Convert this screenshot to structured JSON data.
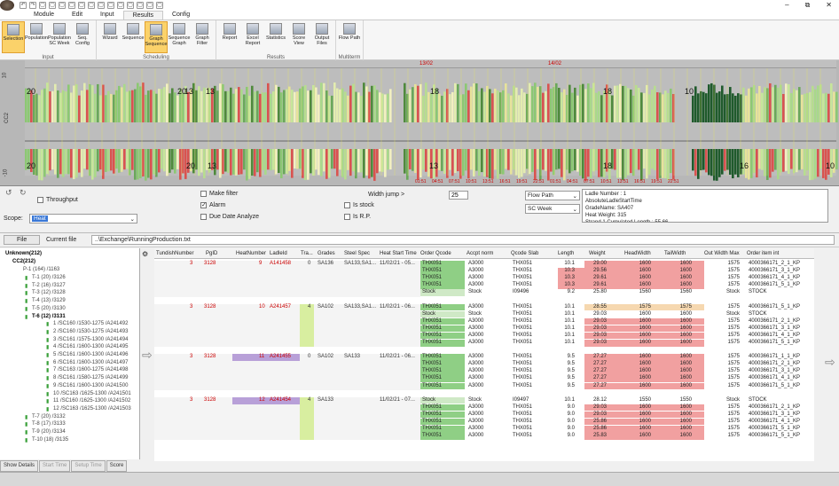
{
  "window": {
    "quick_access": [
      "↶",
      "↷",
      "▢",
      "▢",
      "▢",
      "▢",
      "▢",
      "▢",
      "▢",
      "▢",
      "▢",
      "▢",
      "▢",
      "▢",
      "▢"
    ],
    "controls": [
      "–",
      "⧉",
      "✕"
    ]
  },
  "menu_tabs": [
    "Module",
    "Edit",
    "Input",
    "Results",
    "Config"
  ],
  "ribbon": {
    "groups": [
      {
        "name": "Input",
        "buttons": [
          "Selection",
          "Population",
          "Population SC Week",
          "Seq. Config"
        ]
      },
      {
        "name": "Scheduling",
        "buttons": [
          "Wizard",
          "Sequence",
          "Graph Sequence",
          "Sequence Graph",
          "Graph Filter"
        ]
      },
      {
        "name": "Results",
        "buttons": [
          "Report",
          "Excel Report",
          "Statistics",
          "Score View",
          "Output Files"
        ]
      },
      {
        "name": "Multiterm",
        "buttons": [
          "Flow Path"
        ]
      }
    ],
    "selected": [
      "Selection",
      "Graph Sequence"
    ]
  },
  "chart": {
    "y_labels": [
      "10",
      "CC2",
      "-10"
    ],
    "date_labels": [
      "13/02",
      "14/02"
    ],
    "top_numbers": [
      "20",
      "20",
      "13",
      "13",
      "18",
      "18",
      "10"
    ],
    "bottom_numbers": [
      "20",
      "20",
      "13",
      "13",
      "18",
      "16",
      "10"
    ],
    "time_ticks": [
      "01:51",
      "04:51",
      "07:51",
      "10:51",
      "13:51",
      "16:51",
      "19:51",
      "22:51",
      "01:51",
      "04:51",
      "07:51",
      "10:51",
      "13:51",
      "16:51",
      "19:51",
      "22:51"
    ]
  },
  "controls": {
    "throughput_label": "Throughput",
    "scope_label": "Scope:",
    "scope_value": "Heat",
    "make_filter": "Make filter",
    "alarm": "Alarm",
    "due_date": "Due Date Analyze",
    "width_jump_label": "Width jump >",
    "width_jump_value": "25",
    "is_stock": "Is stock",
    "is_rp": "Is R.P.",
    "flow_path": "Flow Path",
    "sc_week": "SC Week",
    "info_lines": [
      "Ladle Number : 1",
      "AbsoluteLadleStartTime",
      "GradeName: SA407",
      "Heat Weight: 315",
      "Strand 1 Cumulated Length : 55.66"
    ]
  },
  "filebar": {
    "file_tab": "File",
    "current_file_label": "Current file",
    "current_file_path": "..\\Exchange\\RunningProduction.txt"
  },
  "tree": {
    "root": "Unknown(212)",
    "cc": "CC2(212)",
    "p": "P-1 (164) /1163",
    "items": [
      "T-1 (20) /3126",
      "T-2 (16) /3127",
      "T-3 (12) /3128",
      "T-4 (13) /3129",
      "T-5 (20) /3130",
      "T-6 (12) /3131",
      "1 /SC160 /1530-1275 /A241492",
      "2 /SC160 /1530-1275 /A241493",
      "3 /SC161 /1575-1300 /A241494",
      "4 /SC161 /1600-1300 /A241495",
      "5 /SC161 /1600-1300 /A241496",
      "6 /SC161 /1600-1300 /A241497",
      "7 /SC163 /1600-1275 /A241498",
      "8 /SC161 /1580-1275 /A241499",
      "9 /SC161 /1600-1300 /A241500",
      "10 /SC163 /1625-1300 /A241501",
      "11 /SC160 /1625-1300 /A241502",
      "12 /SC163 /1625-1300 /A241503",
      "T-7 (20) /3132",
      "T-8 (17) /3133",
      "T-9 (20) /3134",
      "T-10 (18) /3135"
    ]
  },
  "bottom_buttons": [
    "Show Details",
    "Start Time",
    "Setup Time",
    "Score"
  ],
  "grid": {
    "columns": [
      "TundishNumber",
      "PgID",
      "HeatNumber",
      "LadleId",
      "Tra...",
      "Grades",
      "Steel Spec",
      "Heat Start Time",
      "Order Qcode",
      "Accpt norm",
      "Qcode Slab",
      "Length",
      "Weight",
      "HeadWidth",
      "TailWidth",
      "Out Width Max",
      "Order item int"
    ],
    "heats": [
      {
        "tundish": "3",
        "pgid": "3128",
        "heat": "9",
        "ladle": "A141458",
        "tra": "0",
        "grade": "SA136",
        "spec": "SA133,SA1...",
        "start": "11/02/21 - 05...",
        "rows": [
          [
            "THX051",
            "A3000",
            "THX051",
            "10.1",
            "29.00",
            "1600",
            "1600",
            "1575",
            "4000366171_2_1_KP"
          ],
          [
            "THX051",
            "A3000",
            "THX051",
            "10.3",
            "29.56",
            "1600",
            "1600",
            "1575",
            "4000366171_3_1_KP"
          ],
          [
            "THX051",
            "A3000",
            "THX051",
            "10.3",
            "29.61",
            "1600",
            "1600",
            "1575",
            "4000366171_4_1_KP"
          ],
          [
            "THX051",
            "A3000",
            "THX051",
            "10.3",
            "29.61",
            "1600",
            "1600",
            "1575",
            "4000366171_5_1_KP"
          ],
          [
            "Stock",
            "Stock",
            "I09496",
            "9.2",
            "25.80",
            "1560",
            "1560",
            "Stock",
            "STOCK"
          ]
        ]
      },
      {
        "tundish": "3",
        "pgid": "3128",
        "heat": "10",
        "ladle": "A241457",
        "tra": "4",
        "grade": "SA102",
        "spec": "SA133,SA1...",
        "start": "11/02/21 - 06...",
        "rows": [
          [
            "THX051",
            "A3000",
            "THX051",
            "10.1",
            "28.55",
            "1575",
            "1575",
            "1575",
            "4000366171_5_1_KP"
          ],
          [
            "Stock",
            "Stock",
            "THX051",
            "10.1",
            "29.03",
            "1600",
            "1600",
            "Stock",
            "STOCK"
          ],
          [
            "THX051",
            "A3000",
            "THX051",
            "10.1",
            "29.03",
            "1600",
            "1600",
            "1575",
            "4000366171_2_1_KP"
          ],
          [
            "THX051",
            "A3000",
            "THX051",
            "10.1",
            "29.03",
            "1600",
            "1600",
            "1575",
            "4000366171_3_1_KP"
          ],
          [
            "THX051",
            "A3000",
            "THX051",
            "10.1",
            "29.03",
            "1600",
            "1600",
            "1575",
            "4000366171_4_1_KP"
          ],
          [
            "THX051",
            "A3000",
            "THX051",
            "10.1",
            "29.03",
            "1600",
            "1600",
            "1575",
            "4000366171_5_1_KP"
          ]
        ]
      },
      {
        "tundish": "3",
        "pgid": "3128",
        "heat": "11",
        "ladle": "A241455",
        "tra": "0",
        "grade": "SA102",
        "spec": "SA133",
        "start": "11/02/21 - 06...",
        "rows": [
          [
            "THX051",
            "A3000",
            "THX051",
            "9.5",
            "27.27",
            "1600",
            "1600",
            "1575",
            "4000366171_1_1_KP"
          ],
          [
            "THX051",
            "A3000",
            "THX051",
            "9.5",
            "27.27",
            "1600",
            "1600",
            "1575",
            "4000366171_2_1_KP"
          ],
          [
            "THX051",
            "A3000",
            "THX051",
            "9.5",
            "27.27",
            "1600",
            "1600",
            "1575",
            "4000366171_3_1_KP"
          ],
          [
            "THX051",
            "A3000",
            "THX051",
            "9.5",
            "27.27",
            "1600",
            "1600",
            "1575",
            "4000366171_4_1_KP"
          ],
          [
            "THX051",
            "A3000",
            "THX051",
            "9.5",
            "27.27",
            "1600",
            "1600",
            "1575",
            "4000366171_5_1_KP"
          ]
        ]
      },
      {
        "tundish": "3",
        "pgid": "3128",
        "heat": "12",
        "ladle": "A241454",
        "tra": "4",
        "grade": "SA133",
        "spec": "",
        "start": "11/02/21 - 07...",
        "rows": [
          [
            "Stock",
            "Stock",
            "I09497",
            "10.1",
            "28.12",
            "1550",
            "1550",
            "Stock",
            "STOCK"
          ],
          [
            "THX051",
            "A3000",
            "THX051",
            "9.0",
            "29.03",
            "1600",
            "1600",
            "1575",
            "4000366171_2_1_KP"
          ],
          [
            "THX051",
            "A3000",
            "THX051",
            "9.0",
            "29.03",
            "1600",
            "1600",
            "1575",
            "4000366171_3_1_KP"
          ],
          [
            "THX051",
            "A3000",
            "THX051",
            "9.0",
            "25.86",
            "1600",
            "1600",
            "1575",
            "4000366171_4_1_KP"
          ],
          [
            "THX051",
            "A3000",
            "THX051",
            "9.0",
            "25.86",
            "1600",
            "1600",
            "1575",
            "4000366171_5_1_KP"
          ],
          [
            "THX051",
            "A3000",
            "THX051",
            "9.0",
            "25.83",
            "1600",
            "1600",
            "1575",
            "4000366171_5_1_KP"
          ]
        ]
      }
    ]
  },
  "colors": {
    "green": "#8fcf85",
    "red": "#e87979",
    "purple": "#b8a0d8",
    "lime": "#d8eea0",
    "accent": "#fbd26a"
  }
}
